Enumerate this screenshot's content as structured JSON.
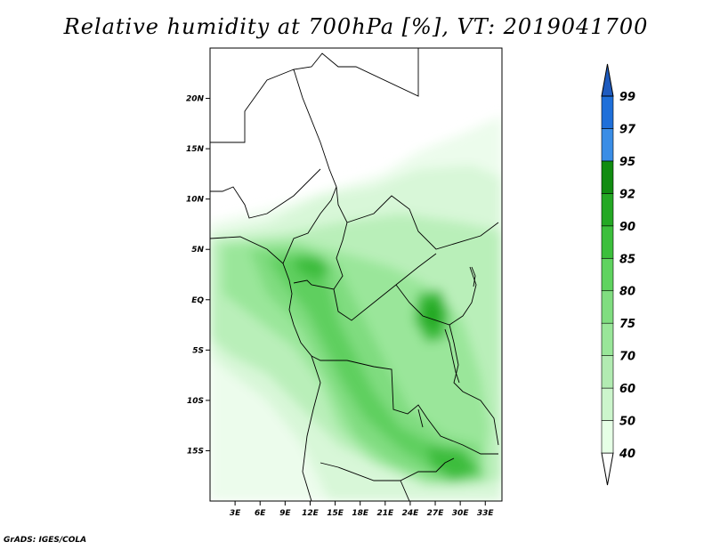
{
  "title": "Relative humidity at 700hPa [%], VT: 2019041700",
  "credit": "GrADS: IGES/COLA",
  "map": {
    "lon_labels": [
      "3E",
      "6E",
      "9E",
      "12E",
      "15E",
      "18E",
      "21E",
      "24E",
      "27E",
      "30E",
      "33E"
    ],
    "lat_labels": [
      "20N",
      "15N",
      "10N",
      "5N",
      "EQ",
      "5S",
      "10S",
      "15S"
    ],
    "lon_range": [
      0,
      35
    ],
    "lat_range": [
      -20,
      25
    ]
  },
  "colorbar": {
    "levels": [
      "40",
      "50",
      "60",
      "70",
      "75",
      "80",
      "85",
      "90",
      "92",
      "95",
      "97",
      "99"
    ],
    "colors": [
      "#ffffff",
      "#e6ffe6",
      "#ccf5cc",
      "#b2ebb2",
      "#99e699",
      "#80dd80",
      "#5fd35f",
      "#3cbf3c",
      "#24a824",
      "#118c11",
      "#3a8de6",
      "#1e6fd9",
      "#1e5bbf"
    ]
  },
  "humidity_colors": {
    "level_40_50": "#ecfcec",
    "level_50_60": "#d8f7d8",
    "level_60_70": "#b9efb9",
    "level_70_75": "#9ae69a",
    "level_75_80": "#7fdc7f",
    "level_80_85": "#5ecf5e",
    "level_85_90": "#3cbd3c",
    "level_90_92": "#23a723"
  }
}
